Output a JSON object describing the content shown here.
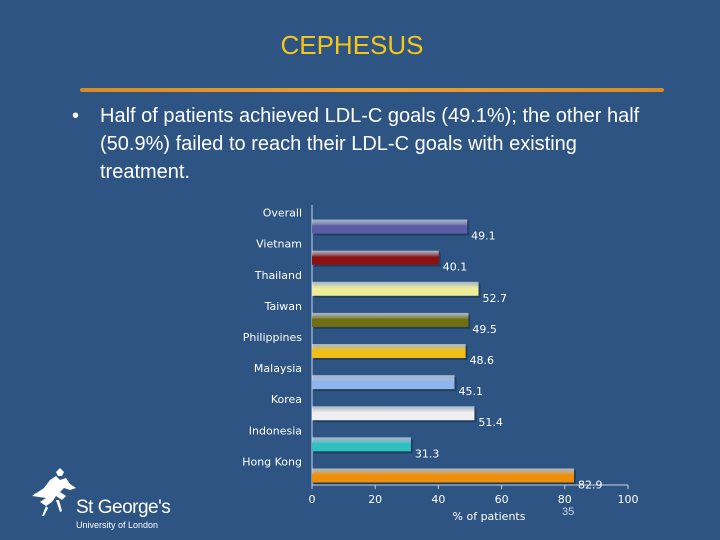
{
  "slide": {
    "title": "CEPHESUS",
    "bullet": "Half of patients achieved LDL-C goals (49.1%); the other half (50.9%) failed to reach their LDL-C goals with existing treatment.",
    "bullet_marker": "•",
    "page_number": "35"
  },
  "logo": {
    "name": "St George's",
    "subtitle": "University of London",
    "icon": "horse-and-knight-icon"
  },
  "chart_data": {
    "type": "bar",
    "orientation": "horizontal",
    "title": "",
    "xlabel": "% of patients",
    "ylabel": "",
    "xlim": [
      0,
      100
    ],
    "xticks": [
      0,
      20,
      40,
      60,
      80,
      100
    ],
    "grid": false,
    "categories": [
      "Overall",
      "Vietnam",
      "Thailand",
      "Taiwan",
      "Philippines",
      "Malaysia",
      "Korea",
      "Indonesia",
      "Hong Kong"
    ],
    "values": [
      49.1,
      40.1,
      52.7,
      49.5,
      48.6,
      45.1,
      51.4,
      31.3,
      82.9
    ],
    "value_labels": [
      "49.1",
      "40.1",
      "52.7",
      "49.5",
      "48.6",
      "45.1",
      "51.4",
      "31.3",
      "82.9"
    ],
    "colors": [
      "#5b5ea6",
      "#8b1010",
      "#eeee9a",
      "#6f6f10",
      "#f2be16",
      "#8fb6ec",
      "#f0f0f0",
      "#2fc0c0",
      "#f0900a"
    ]
  }
}
